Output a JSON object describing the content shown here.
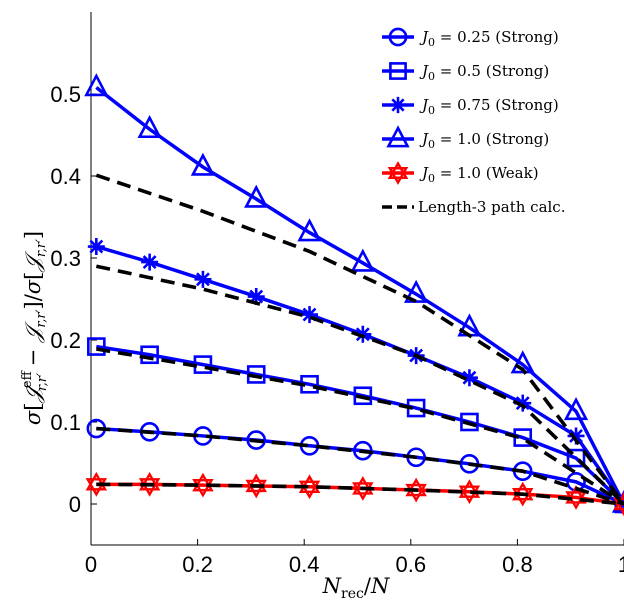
{
  "chart_data": {
    "type": "line",
    "title": "",
    "xlabel": "N_rec/N",
    "ylabel": "σ[J^eff_{r,r'} − J_{r,r'}]/σ[J_{r,r'}]",
    "xlim": [
      0,
      1
    ],
    "ylim": [
      -0.05,
      0.6
    ],
    "x_ticks": [
      0,
      0.2,
      0.4,
      0.6,
      0.8,
      1
    ],
    "x_tick_labels": [
      "0",
      "0.2",
      "0.4",
      "0.6",
      "0.8",
      "1"
    ],
    "y_ticks": [
      0,
      0.1,
      0.2,
      0.3,
      0.4,
      0.5
    ],
    "y_tick_labels": [
      "0",
      "0.1",
      "0.2",
      "0.3",
      "0.4",
      "0.5"
    ],
    "grid": false,
    "legend_position": "top-right",
    "x": [
      0.01,
      0.11,
      0.21,
      0.31,
      0.41,
      0.51,
      0.61,
      0.71,
      0.81,
      0.91,
      1.0
    ],
    "series": [
      {
        "name": "J_0 = 0.25 (Strong)",
        "legend_sub": "0",
        "legend_rest": " = 0.25 (Strong)",
        "marker": "circle",
        "color": "#0000ff",
        "values": [
          0.092,
          0.088,
          0.083,
          0.078,
          0.071,
          0.065,
          0.057,
          0.049,
          0.04,
          0.027,
          0.0
        ]
      },
      {
        "name": "J_0 = 0.5 (Strong)",
        "legend_sub": "0",
        "legend_rest": " = 0.5 (Strong)",
        "marker": "square",
        "color": "#0000ff",
        "values": [
          0.192,
          0.182,
          0.17,
          0.158,
          0.146,
          0.132,
          0.117,
          0.1,
          0.081,
          0.056,
          0.0
        ]
      },
      {
        "name": "J_0 = 0.75 (Strong)",
        "legend_sub": "0",
        "legend_rest": " = 0.75 (Strong)",
        "marker": "asterisk",
        "color": "#0000ff",
        "values": [
          0.314,
          0.295,
          0.274,
          0.253,
          0.231,
          0.207,
          0.181,
          0.154,
          0.123,
          0.083,
          0.0
        ]
      },
      {
        "name": "J_0 = 1.0 (Strong)",
        "legend_sub": "0",
        "legend_rest": " = 1.0 (Strong)",
        "marker": "triangle",
        "color": "#0000ff",
        "values": [
          0.508,
          0.457,
          0.411,
          0.372,
          0.331,
          0.294,
          0.256,
          0.215,
          0.17,
          0.113,
          0.0
        ]
      },
      {
        "name": "J_0 = 1.0 (Weak)",
        "legend_sub": "0",
        "legend_rest": " = 1.0 (Weak)",
        "marker": "hexagram",
        "color": "#ff0000",
        "values": [
          0.024,
          0.024,
          0.023,
          0.022,
          0.021,
          0.019,
          0.017,
          0.015,
          0.012,
          0.008,
          0.0
        ]
      }
    ],
    "dashed_series": {
      "name": "Length-3 path calc.",
      "color": "#000000",
      "lines": [
        {
          "x": [
            0.01,
            0.21,
            0.41,
            0.61,
            0.81,
            1.0
          ],
          "values": [
            0.401,
            0.357,
            0.308,
            0.247,
            0.164,
            0.0
          ]
        },
        {
          "x": [
            0.01,
            0.21,
            0.41,
            0.61,
            0.81,
            1.0
          ],
          "values": [
            0.29,
            0.262,
            0.228,
            0.181,
            0.12,
            0.0
          ]
        },
        {
          "x": [
            0.01,
            0.21,
            0.41,
            0.61,
            0.81,
            1.0
          ],
          "values": [
            0.189,
            0.167,
            0.144,
            0.116,
            0.08,
            0.0
          ]
        },
        {
          "x": [
            0.01,
            0.21,
            0.41,
            0.61,
            0.81,
            1.0
          ],
          "values": [
            0.092,
            0.083,
            0.071,
            0.057,
            0.04,
            0.0
          ]
        },
        {
          "x": [
            0.01,
            0.21,
            0.41,
            0.61,
            0.81,
            1.0
          ],
          "values": [
            0.024,
            0.023,
            0.021,
            0.017,
            0.012,
            0.0
          ]
        }
      ]
    }
  }
}
